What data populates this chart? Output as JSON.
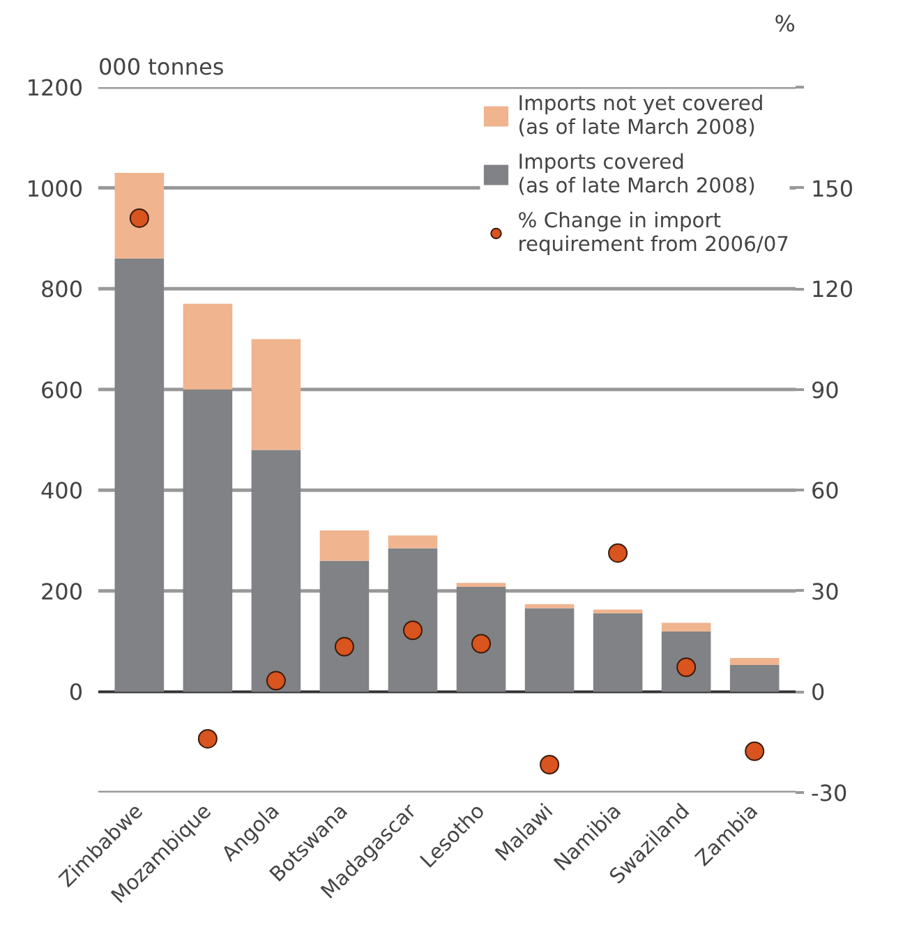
{
  "chart_data": {
    "type": "bar",
    "stacked": true,
    "ylabel": "000 tonnes",
    "y2label": "%",
    "categories": [
      "Zimbabwe",
      "Mozambique",
      "Angola",
      "Botswana",
      "Madagascar",
      "Lesotho",
      "Malawi",
      "Namibia",
      "Swaziland",
      "Zambia"
    ],
    "series": [
      {
        "name": "Imports covered\n(as of late March 2008)",
        "color": "#808285",
        "values": [
          860,
          600,
          480,
          260,
          285,
          208,
          166,
          156,
          120,
          53
        ]
      },
      {
        "name": "Imports not yet covered\n(as of late March 2008)",
        "color": "#f0b48f",
        "values": [
          170,
          170,
          220,
          60,
          25,
          8,
          8,
          7,
          17,
          14
        ]
      },
      {
        "name": "% Change in import\nrequirement from 2006/07",
        "type": "scatter",
        "axis": "y2",
        "color": "#d9541e",
        "values": [
          141,
          -14,
          3.3,
          13.4,
          18.3,
          14.3,
          -21.7,
          41.3,
          7.3,
          -17.7
        ]
      }
    ],
    "ylim": [
      -200,
      1200
    ],
    "yticks": [
      {
        "value": -200,
        "label": null
      },
      0,
      200,
      400,
      600,
      800,
      1000,
      1200
    ],
    "y2lim": [
      -30,
      180
    ],
    "y2ticks": [
      -30,
      0,
      30,
      60,
      90,
      120,
      150,
      {
        "value": 180,
        "label": null
      }
    ],
    "grid": "y",
    "legend": "top right",
    "marker": "circle"
  }
}
